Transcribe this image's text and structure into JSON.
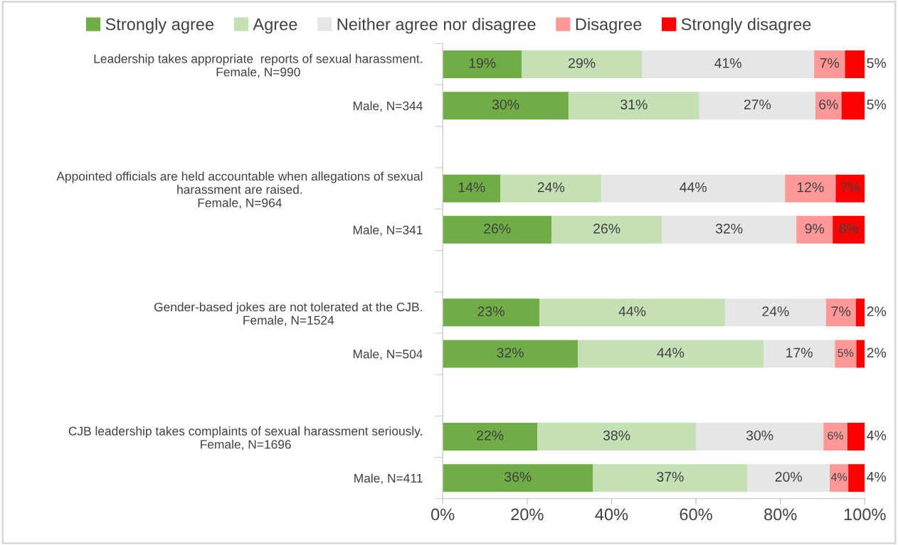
{
  "chart_data": {
    "type": "bar",
    "orientation": "horizontal",
    "stacked": true,
    "categories": [
      "Leadership takes appropriate  reports of sexual harassment.\nFemale, N=990",
      "Male, N=344",
      null,
      "Appointed officials are held accountable when allegations of sexual\nharassment are raised.\nFemale, N=964",
      "Male, N=341",
      null,
      "Gender-based jokes are not tolerated at the CJB.\nFemale, N=1524",
      "Male, N=504",
      null,
      "CJB leadership takes complaints of sexual harassment seriously.\nFemale, N=1696",
      "Male, N=411"
    ],
    "series": [
      {
        "name": "Strongly agree",
        "color": "#70ad47",
        "values": [
          18.7,
          29.8,
          null,
          13.7,
          25.8,
          null,
          22.9,
          32.0,
          null,
          22.4,
          35.6
        ],
        "value_labels": [
          "19%",
          "30%",
          null,
          "14%",
          "26%",
          null,
          "23%",
          "32%",
          null,
          "22%",
          "36%"
        ]
      },
      {
        "name": "Agree",
        "color": "#c5e0b4",
        "values": [
          28.5,
          31.0,
          null,
          23.9,
          26.1,
          null,
          44.0,
          44.0,
          null,
          37.6,
          36.6
        ],
        "value_labels": [
          "29%",
          "31%",
          null,
          "24%",
          "26%",
          null,
          "44%",
          "44%",
          null,
          "38%",
          "37%"
        ]
      },
      {
        "name": "Neither agree nor disagree",
        "color": "#e7e6e6",
        "values": [
          40.8,
          27.5,
          null,
          43.5,
          31.9,
          null,
          23.9,
          16.9,
          null,
          30.2,
          19.5
        ],
        "value_labels": [
          "41%",
          "27%",
          null,
          "44%",
          "32%",
          null,
          "24%",
          "17%",
          null,
          "30%",
          "20%"
        ]
      },
      {
        "name": "Disagree",
        "color": "#ff9999",
        "values": [
          7.3,
          6.2,
          null,
          12.0,
          8.6,
          null,
          7.1,
          5.1,
          null,
          5.7,
          4.4
        ],
        "value_labels": [
          "7%",
          "6%",
          null,
          "12%",
          "9%",
          null,
          "7%",
          "5%",
          null,
          "6%",
          "4%"
        ]
      },
      {
        "name": "Strongly disagree",
        "color": "#ff0000",
        "values": [
          4.7,
          5.5,
          null,
          6.9,
          7.6,
          null,
          2.1,
          2.0,
          null,
          4.1,
          3.9
        ],
        "value_labels": [
          "5%",
          "5%",
          null,
          "7%",
          "8%",
          null,
          "2%",
          "2%",
          null,
          "4%",
          "4%"
        ]
      }
    ],
    "xlim": [
      0,
      100
    ],
    "xticks": [
      {
        "value": 0,
        "label": "0%"
      },
      {
        "value": 20,
        "label": "20%"
      },
      {
        "value": 40,
        "label": "40%"
      },
      {
        "value": 60,
        "label": "60%"
      },
      {
        "value": 80,
        "label": "80%"
      },
      {
        "value": 100,
        "label": "100%"
      }
    ],
    "legend": "top",
    "grid": false
  }
}
